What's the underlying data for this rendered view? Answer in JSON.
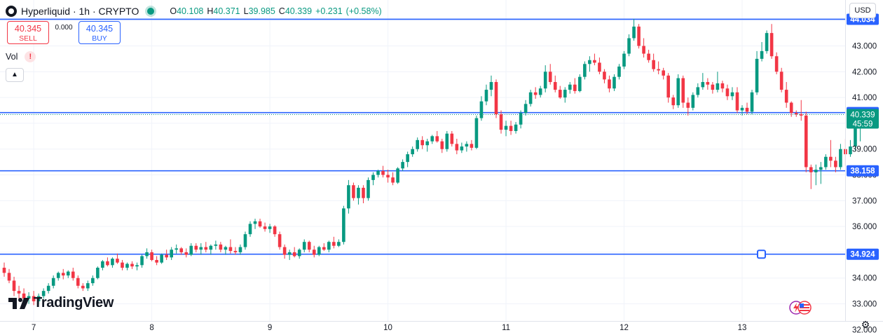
{
  "header": {
    "symbol": "Hyperliquid",
    "sep1": "·",
    "interval": "1h",
    "sep2": "·",
    "exchange": "CRYPTO",
    "ohlc": {
      "o_label": "O",
      "o": "40.108",
      "h_label": "H",
      "h": "40.371",
      "l_label": "L",
      "l": "39.985",
      "c_label": "C",
      "c": "40.339",
      "change": "+0.231",
      "change_pct": "(+0.58%)"
    },
    "status_color": "#089981"
  },
  "trade": {
    "sell_price": "40.345",
    "sell_label": "SELL",
    "spread": "0.000",
    "buy_price": "40.345",
    "buy_label": "BUY"
  },
  "volume": {
    "label": "Vol",
    "warning": "!"
  },
  "collapse_icon": "chevron-up-icon",
  "currency": "USD",
  "branding": {
    "text": "TradingView"
  },
  "settings_icon": "gear-icon",
  "colors": {
    "up": "#089981",
    "down": "#f23645",
    "level": "#2962ff",
    "grid": "#f0f3fa"
  },
  "chart_data": {
    "type": "candlestick",
    "title": "",
    "xlabel": "",
    "ylabel": "",
    "ylim": [
      31.9,
      44.4
    ],
    "y_ticks": [
      "32.000",
      "33.000",
      "34.000",
      "35.000",
      "36.000",
      "37.000",
      "38.000",
      "39.000",
      "40.000",
      "41.000",
      "42.000",
      "43.000",
      "44.000"
    ],
    "x_ticks": [
      "7",
      "8",
      "9",
      "10",
      "11",
      "12",
      "13"
    ],
    "x_tick_candle_index": [
      6,
      30,
      54,
      78,
      102,
      126,
      150
    ],
    "grid": true,
    "horizontal_levels": [
      44.034,
      40.414,
      38.158,
      34.924
    ],
    "level_labels": [
      "44.034",
      "40.414",
      "38.158",
      "34.924"
    ],
    "current_price": "40.339",
    "countdown": "45:59",
    "ohlc": [
      [
        34.4,
        34.6,
        34.05,
        34.2
      ],
      [
        34.2,
        34.35,
        33.8,
        33.9
      ],
      [
        33.9,
        34.05,
        33.3,
        33.5
      ],
      [
        33.5,
        33.7,
        33.1,
        33.4
      ],
      [
        33.4,
        33.6,
        33.0,
        33.2
      ],
      [
        33.2,
        33.45,
        33.0,
        33.3
      ],
      [
        33.3,
        33.5,
        32.95,
        33.1
      ],
      [
        33.1,
        33.4,
        33.0,
        33.3
      ],
      [
        33.3,
        33.6,
        33.2,
        33.5
      ],
      [
        33.5,
        33.8,
        33.4,
        33.7
      ],
      [
        33.7,
        34.1,
        33.6,
        34.0
      ],
      [
        34.0,
        34.25,
        33.9,
        34.2
      ],
      [
        34.2,
        34.35,
        33.95,
        34.1
      ],
      [
        34.1,
        34.3,
        34.0,
        34.25
      ],
      [
        34.25,
        34.4,
        33.9,
        34.0
      ],
      [
        34.0,
        34.1,
        33.6,
        33.7
      ],
      [
        33.7,
        33.8,
        33.5,
        33.6
      ],
      [
        33.6,
        33.9,
        33.5,
        33.8
      ],
      [
        33.8,
        34.1,
        33.7,
        34.0
      ],
      [
        34.0,
        34.45,
        33.95,
        34.4
      ],
      [
        34.4,
        34.7,
        34.3,
        34.65
      ],
      [
        34.65,
        34.8,
        34.45,
        34.5
      ],
      [
        34.5,
        34.8,
        34.4,
        34.75
      ],
      [
        34.75,
        34.95,
        34.55,
        34.6
      ],
      [
        34.6,
        34.7,
        34.3,
        34.4
      ],
      [
        34.4,
        34.6,
        34.3,
        34.55
      ],
      [
        34.55,
        34.65,
        34.35,
        34.45
      ],
      [
        34.45,
        34.6,
        34.3,
        34.5
      ],
      [
        34.5,
        34.9,
        34.4,
        34.85
      ],
      [
        34.85,
        35.15,
        34.75,
        35.0
      ],
      [
        35.0,
        35.1,
        34.65,
        34.7
      ],
      [
        34.7,
        34.85,
        34.5,
        34.6
      ],
      [
        34.6,
        34.95,
        34.55,
        34.9
      ],
      [
        34.9,
        35.1,
        34.7,
        34.8
      ],
      [
        34.8,
        35.2,
        34.7,
        35.1
      ],
      [
        35.1,
        35.3,
        34.95,
        35.15
      ],
      [
        35.15,
        35.2,
        34.9,
        35.0
      ],
      [
        35.0,
        35.15,
        34.8,
        34.9
      ],
      [
        34.9,
        35.35,
        34.85,
        35.25
      ],
      [
        35.25,
        35.35,
        35.0,
        35.1
      ],
      [
        35.1,
        35.35,
        34.9,
        35.2
      ],
      [
        35.2,
        35.4,
        35.0,
        35.1
      ],
      [
        35.1,
        35.3,
        34.9,
        35.25
      ],
      [
        35.25,
        35.45,
        35.1,
        35.3
      ],
      [
        35.3,
        35.4,
        35.0,
        35.1
      ],
      [
        35.1,
        35.25,
        34.9,
        35.2
      ],
      [
        35.2,
        35.5,
        34.95,
        35.05
      ],
      [
        35.05,
        35.2,
        34.9,
        35.0
      ],
      [
        35.0,
        35.3,
        34.9,
        35.2
      ],
      [
        35.2,
        35.8,
        35.1,
        35.7
      ],
      [
        35.7,
        36.2,
        35.6,
        36.1
      ],
      [
        36.1,
        36.3,
        35.9,
        36.2
      ],
      [
        36.2,
        36.3,
        35.95,
        36.0
      ],
      [
        36.0,
        36.15,
        35.8,
        35.9
      ],
      [
        35.9,
        36.1,
        35.75,
        36.0
      ],
      [
        36.0,
        36.05,
        35.6,
        35.7
      ],
      [
        35.7,
        35.8,
        35.1,
        35.2
      ],
      [
        35.2,
        35.3,
        34.75,
        34.9
      ],
      [
        34.9,
        35.1,
        34.7,
        35.0
      ],
      [
        35.0,
        35.2,
        34.8,
        34.85
      ],
      [
        34.85,
        35.15,
        34.75,
        35.1
      ],
      [
        35.1,
        35.5,
        35.0,
        35.4
      ],
      [
        35.4,
        35.45,
        35.0,
        35.1
      ],
      [
        35.1,
        35.25,
        34.8,
        34.9
      ],
      [
        34.9,
        35.25,
        34.85,
        35.2
      ],
      [
        35.2,
        35.35,
        35.05,
        35.1
      ],
      [
        35.1,
        35.45,
        35.0,
        35.4
      ],
      [
        35.4,
        35.6,
        35.15,
        35.25
      ],
      [
        35.25,
        35.5,
        35.2,
        35.4
      ],
      [
        35.4,
        36.8,
        35.3,
        36.7
      ],
      [
        36.7,
        37.8,
        36.5,
        37.6
      ],
      [
        37.6,
        37.7,
        37.0,
        37.1
      ],
      [
        37.1,
        37.6,
        36.85,
        37.5
      ],
      [
        37.5,
        37.6,
        36.9,
        37.1
      ],
      [
        37.1,
        37.9,
        37.0,
        37.8
      ],
      [
        37.8,
        38.1,
        37.6,
        38.0
      ],
      [
        38.0,
        38.2,
        37.9,
        38.15
      ],
      [
        38.15,
        38.35,
        37.9,
        38.0
      ],
      [
        38.0,
        38.2,
        37.7,
        37.9
      ],
      [
        37.9,
        38.1,
        37.6,
        37.7
      ],
      [
        37.7,
        38.3,
        37.65,
        38.25
      ],
      [
        38.25,
        38.6,
        38.15,
        38.5
      ],
      [
        38.5,
        38.9,
        38.3,
        38.8
      ],
      [
        38.8,
        39.1,
        38.7,
        39.0
      ],
      [
        39.0,
        39.45,
        38.9,
        39.35
      ],
      [
        39.35,
        39.5,
        39.0,
        39.15
      ],
      [
        39.15,
        39.4,
        38.9,
        39.3
      ],
      [
        39.3,
        39.55,
        39.2,
        39.5
      ],
      [
        39.5,
        39.7,
        39.25,
        39.3
      ],
      [
        39.3,
        39.4,
        38.85,
        39.0
      ],
      [
        39.0,
        39.7,
        38.9,
        39.6
      ],
      [
        39.6,
        39.7,
        39.1,
        39.2
      ],
      [
        39.2,
        39.4,
        38.8,
        38.95
      ],
      [
        38.95,
        39.25,
        38.85,
        39.1
      ],
      [
        39.1,
        39.3,
        38.9,
        39.2
      ],
      [
        39.2,
        39.35,
        38.95,
        39.05
      ],
      [
        39.05,
        40.3,
        39.0,
        40.2
      ],
      [
        40.2,
        41.05,
        40.1,
        40.85
      ],
      [
        40.85,
        41.5,
        40.7,
        41.3
      ],
      [
        41.3,
        41.85,
        41.05,
        41.6
      ],
      [
        41.6,
        41.7,
        40.2,
        40.35
      ],
      [
        40.35,
        40.5,
        39.6,
        39.75
      ],
      [
        39.75,
        40.1,
        39.5,
        39.9
      ],
      [
        39.9,
        40.1,
        39.55,
        39.7
      ],
      [
        39.7,
        40.05,
        39.6,
        39.95
      ],
      [
        39.95,
        40.5,
        39.8,
        40.4
      ],
      [
        40.4,
        40.9,
        40.3,
        40.75
      ],
      [
        40.75,
        41.3,
        40.65,
        41.2
      ],
      [
        41.2,
        41.4,
        40.95,
        41.1
      ],
      [
        41.1,
        41.45,
        41.0,
        41.35
      ],
      [
        41.35,
        42.25,
        41.2,
        42.0
      ],
      [
        42.0,
        42.3,
        41.5,
        41.6
      ],
      [
        41.6,
        41.85,
        41.2,
        41.3
      ],
      [
        41.3,
        41.45,
        40.95,
        41.0
      ],
      [
        41.0,
        41.4,
        40.8,
        41.3
      ],
      [
        41.3,
        41.6,
        41.15,
        41.5
      ],
      [
        41.5,
        41.75,
        41.15,
        41.25
      ],
      [
        41.25,
        41.9,
        41.2,
        41.8
      ],
      [
        41.8,
        42.4,
        41.7,
        42.3
      ],
      [
        42.3,
        42.6,
        42.0,
        42.45
      ],
      [
        42.45,
        42.7,
        42.25,
        42.35
      ],
      [
        42.35,
        42.55,
        41.9,
        42.0
      ],
      [
        42.0,
        42.1,
        41.55,
        41.7
      ],
      [
        41.7,
        41.85,
        41.2,
        41.35
      ],
      [
        41.35,
        41.9,
        41.25,
        41.8
      ],
      [
        41.8,
        42.3,
        41.7,
        42.2
      ],
      [
        42.2,
        42.8,
        42.1,
        42.7
      ],
      [
        42.7,
        43.45,
        42.6,
        43.3
      ],
      [
        43.3,
        44.05,
        43.2,
        43.75
      ],
      [
        43.75,
        43.85,
        42.9,
        43.0
      ],
      [
        43.0,
        43.3,
        42.55,
        42.7
      ],
      [
        42.7,
        42.85,
        42.35,
        42.45
      ],
      [
        42.45,
        42.7,
        42.0,
        42.1
      ],
      [
        42.1,
        42.4,
        41.9,
        42.05
      ],
      [
        42.05,
        42.15,
        41.7,
        41.85
      ],
      [
        41.85,
        41.95,
        40.8,
        41.0
      ],
      [
        41.0,
        41.1,
        40.55,
        40.7
      ],
      [
        40.7,
        41.9,
        40.6,
        41.75
      ],
      [
        41.75,
        41.85,
        40.6,
        40.8
      ],
      [
        40.8,
        41.0,
        40.3,
        40.6
      ],
      [
        40.6,
        41.2,
        40.5,
        41.1
      ],
      [
        41.1,
        41.55,
        41.0,
        41.4
      ],
      [
        41.4,
        41.95,
        41.3,
        41.6
      ],
      [
        41.6,
        41.75,
        41.3,
        41.5
      ],
      [
        41.5,
        41.6,
        41.15,
        41.3
      ],
      [
        41.3,
        42.0,
        41.2,
        41.55
      ],
      [
        41.55,
        41.65,
        41.2,
        41.35
      ],
      [
        41.35,
        41.5,
        40.9,
        41.05
      ],
      [
        41.05,
        41.4,
        40.9,
        41.2
      ],
      [
        41.2,
        41.4,
        40.4,
        40.5
      ],
      [
        40.5,
        40.7,
        40.3,
        40.6
      ],
      [
        40.6,
        40.8,
        40.35,
        40.45
      ],
      [
        40.45,
        41.3,
        40.35,
        41.2
      ],
      [
        41.2,
        42.8,
        41.1,
        42.5
      ],
      [
        42.5,
        43.15,
        42.4,
        42.8
      ],
      [
        42.8,
        43.6,
        42.7,
        43.5
      ],
      [
        43.5,
        43.85,
        42.5,
        42.6
      ],
      [
        42.6,
        42.75,
        41.9,
        42.0
      ],
      [
        42.0,
        42.15,
        41.2,
        41.3
      ],
      [
        41.3,
        41.6,
        40.6,
        40.8
      ],
      [
        40.8,
        40.85,
        40.25,
        40.4
      ],
      [
        40.4,
        40.5,
        40.25,
        40.35
      ],
      [
        40.35,
        40.9,
        40.1,
        40.3
      ],
      [
        40.3,
        40.45,
        38.1,
        38.3
      ],
      [
        38.3,
        38.4,
        37.45,
        38.1
      ],
      [
        38.1,
        38.4,
        37.6,
        38.2
      ],
      [
        38.2,
        38.5,
        37.65,
        38.3
      ],
      [
        38.3,
        38.8,
        38.2,
        38.7
      ],
      [
        38.7,
        39.35,
        38.3,
        38.55
      ],
      [
        38.55,
        38.7,
        38.1,
        38.3
      ],
      [
        38.3,
        39.2,
        38.2,
        39.0
      ],
      [
        39.0,
        39.4,
        38.35,
        38.8
      ],
      [
        38.8,
        39.35,
        38.7,
        39.1
      ],
      [
        39.1,
        40.05,
        38.95,
        39.85
      ],
      [
        39.85,
        40.05,
        39.3,
        39.95
      ],
      [
        39.95,
        40.45,
        39.85,
        40.1
      ],
      [
        40.1,
        40.371,
        39.985,
        40.339
      ]
    ]
  }
}
